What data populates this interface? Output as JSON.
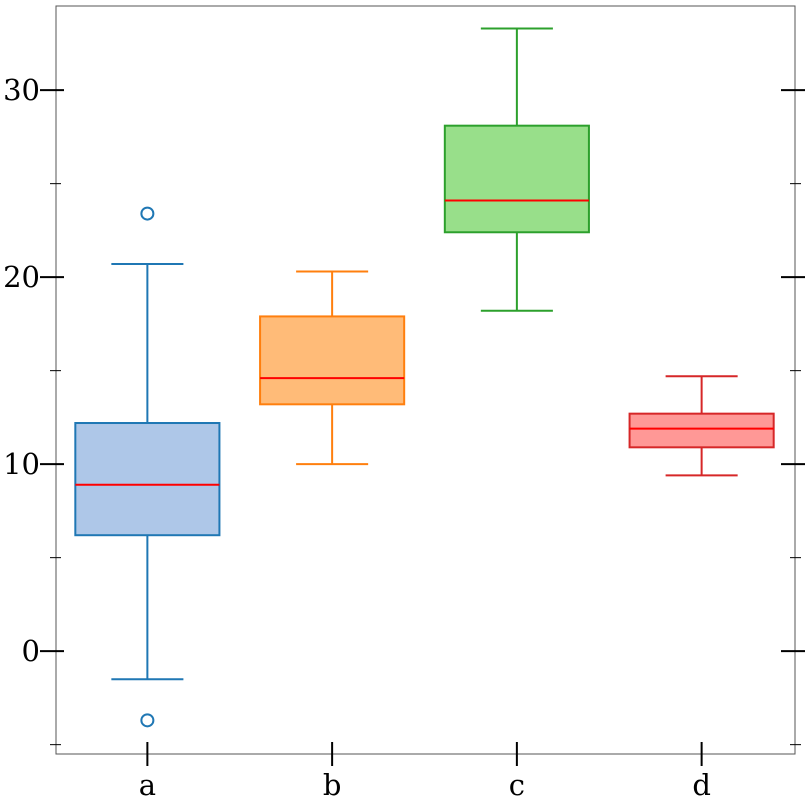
{
  "chart_data": {
    "type": "box",
    "title": "",
    "xlabel": "",
    "ylabel": "",
    "categories": [
      "a",
      "b",
      "c",
      "d"
    ],
    "ylim": [
      -5.5,
      34.5
    ],
    "yticks_major": [
      0,
      10,
      20,
      30
    ],
    "yticks_minor": [
      -5,
      5,
      15,
      25
    ],
    "grid": false,
    "median_color": "#ff0000",
    "boxes": [
      {
        "category": "a",
        "whisker_low": -1.5,
        "q1": 6.2,
        "median": 8.9,
        "q3": 12.2,
        "whisker_high": 20.7,
        "outliers": [
          23.4,
          -3.7
        ],
        "edge_color": "#1f77b4",
        "fill_color": "#aec7e8"
      },
      {
        "category": "b",
        "whisker_low": 10.0,
        "q1": 13.2,
        "median": 14.6,
        "q3": 17.9,
        "whisker_high": 20.3,
        "outliers": [],
        "edge_color": "#ff7f0e",
        "fill_color": "#ffbb78"
      },
      {
        "category": "c",
        "whisker_low": 18.2,
        "q1": 22.4,
        "median": 24.1,
        "q3": 28.1,
        "whisker_high": 33.3,
        "outliers": [],
        "edge_color": "#2ca02c",
        "fill_color": "#98df8a"
      },
      {
        "category": "d",
        "whisker_low": 9.4,
        "q1": 10.9,
        "median": 11.9,
        "q3": 12.7,
        "whisker_high": 14.7,
        "outliers": [],
        "edge_color": "#d62728",
        "fill_color": "#ff9896"
      }
    ]
  }
}
